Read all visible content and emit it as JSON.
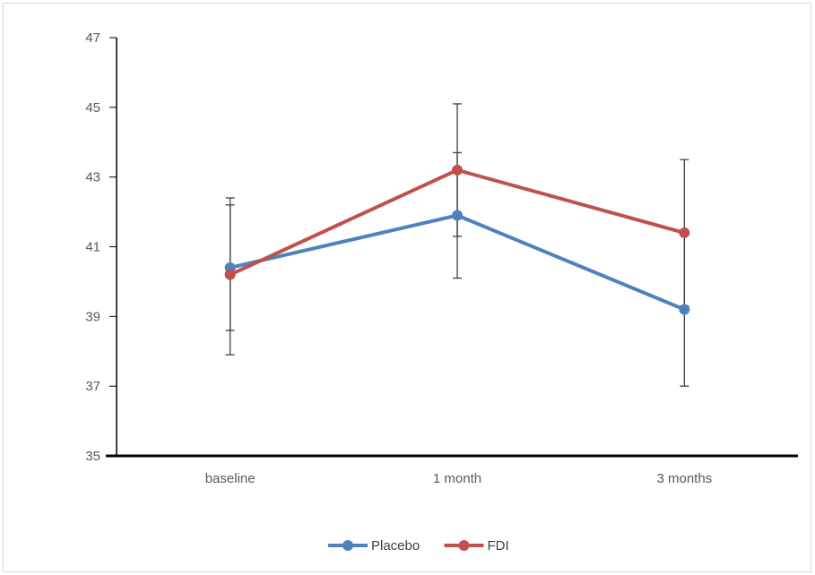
{
  "chart_data": {
    "type": "line",
    "categories": [
      "baseline",
      "1 month",
      "3 months"
    ],
    "series": [
      {
        "name": "Placebo",
        "color": "#4f81bd",
        "values": [
          40.4,
          41.9,
          39.2
        ],
        "error_low": [
          37.9,
          40.1,
          37.0
        ],
        "error_high": [
          42.2,
          43.7,
          41.4
        ]
      },
      {
        "name": "FDI",
        "color": "#c0504d",
        "values": [
          40.2,
          43.2,
          41.4
        ],
        "error_low": [
          38.6,
          41.3,
          39.3
        ],
        "error_high": [
          42.4,
          45.1,
          43.5
        ]
      }
    ],
    "ylim": [
      35,
      47
    ],
    "yticks": [
      "35",
      "37",
      "39",
      "41",
      "43",
      "45",
      "47"
    ],
    "grid": false,
    "legend": "bottom",
    "error_bar_color": "#404040"
  }
}
